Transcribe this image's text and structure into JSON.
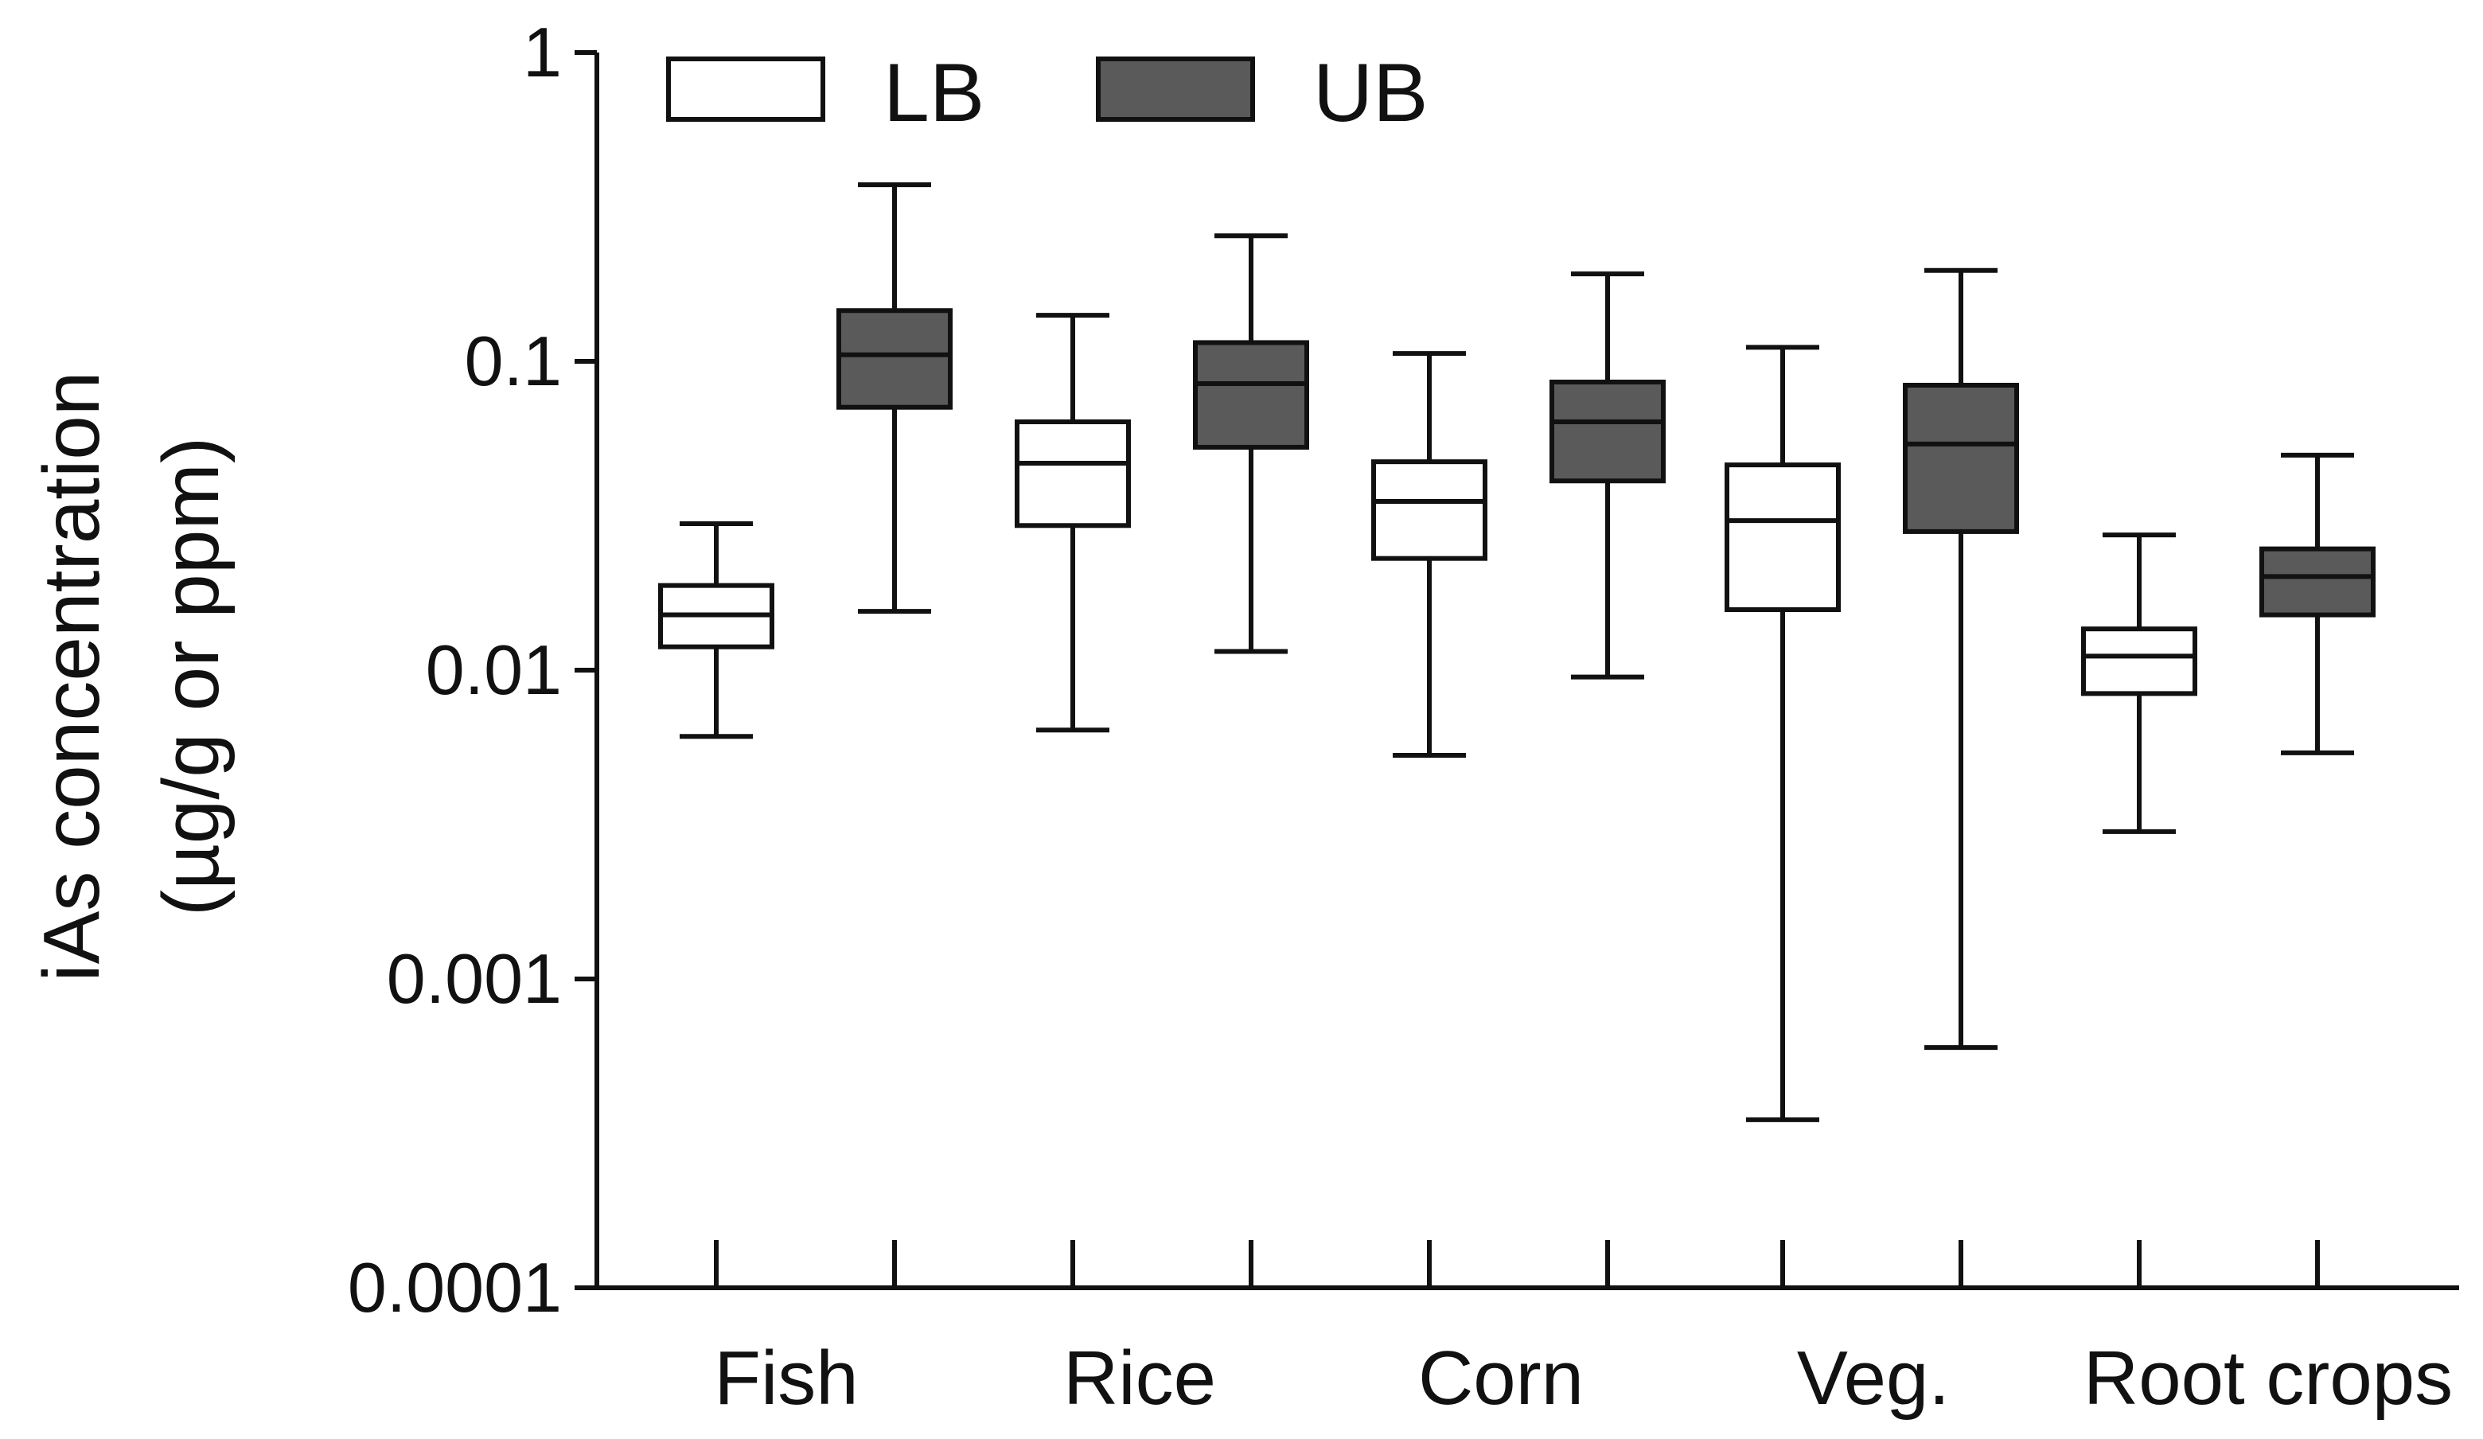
{
  "chart_data": {
    "type": "box",
    "title": "",
    "xlabel": "",
    "ylabel_lines": [
      "iAs concentration",
      "(µg/g or ppm)"
    ],
    "yscale": "log",
    "ylim": [
      0.0001,
      1
    ],
    "yticks": [
      {
        "value": 1,
        "label": "1"
      },
      {
        "value": 0.1,
        "label": "0.1"
      },
      {
        "value": 0.01,
        "label": "0.01"
      },
      {
        "value": 0.001,
        "label": "0.001"
      },
      {
        "value": 0.0001,
        "label": "0.0001"
      }
    ],
    "categories": [
      "Fish",
      "Rice",
      "Corn",
      "Veg.",
      "Root crops"
    ],
    "legend": {
      "placement": "top-left",
      "entries": [
        {
          "name": "LB",
          "fill": "#ffffff"
        },
        {
          "name": "UB",
          "fill": "#5a5a5a"
        }
      ]
    },
    "series": [
      {
        "name": "LB",
        "fill": "#ffffff",
        "boxes": [
          {
            "min": 0.0061,
            "q1": 0.0119,
            "median": 0.0151,
            "q3": 0.0188,
            "max": 0.0298
          },
          {
            "min": 0.0064,
            "q1": 0.0294,
            "median": 0.0468,
            "q3": 0.0637,
            "max": 0.141
          },
          {
            "min": 0.0053,
            "q1": 0.023,
            "median": 0.0352,
            "q3": 0.0473,
            "max": 0.106
          },
          {
            "min": 0.00035,
            "q1": 0.0157,
            "median": 0.0305,
            "q3": 0.0462,
            "max": 0.111
          },
          {
            "min": 0.003,
            "q1": 0.0084,
            "median": 0.0111,
            "q3": 0.0136,
            "max": 0.0274
          }
        ]
      },
      {
        "name": "UB",
        "fill": "#5a5a5a",
        "boxes": [
          {
            "min": 0.0155,
            "q1": 0.071,
            "median": 0.105,
            "q3": 0.146,
            "max": 0.373
          },
          {
            "min": 0.0115,
            "q1": 0.0527,
            "median": 0.0847,
            "q3": 0.115,
            "max": 0.255
          },
          {
            "min": 0.0095,
            "q1": 0.041,
            "median": 0.0637,
            "q3": 0.0857,
            "max": 0.192
          },
          {
            "min": 0.0006,
            "q1": 0.0281,
            "median": 0.054,
            "q3": 0.0837,
            "max": 0.197
          },
          {
            "min": 0.0054,
            "q1": 0.0151,
            "median": 0.0201,
            "q3": 0.0247,
            "max": 0.0497
          }
        ]
      }
    ]
  }
}
